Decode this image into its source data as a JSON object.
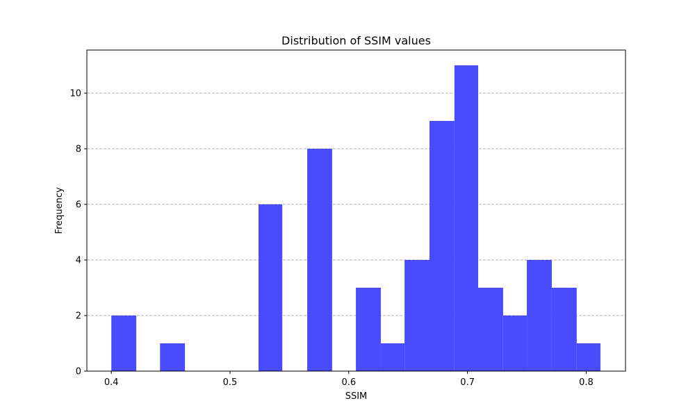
{
  "chart_data": {
    "type": "bar",
    "title": "Distribution of SSIM values",
    "xlabel": "SSIM",
    "ylabel": "Frequency",
    "bar_color": "#4a4aff",
    "grid": {
      "axis": "y",
      "style": "dashed",
      "color": "#b0b0b0"
    },
    "xlim": [
      0.3794,
      0.8331
    ],
    "ylim": [
      0,
      11.55
    ],
    "x_ticks": [
      0.4,
      0.5,
      0.6,
      0.7,
      0.8
    ],
    "x_tick_labels": [
      "0.4",
      "0.5",
      "0.6",
      "0.7",
      "0.8"
    ],
    "y_ticks": [
      0,
      2,
      4,
      6,
      8,
      10
    ],
    "y_tick_labels": [
      "0",
      "2",
      "4",
      "6",
      "8",
      "10"
    ],
    "bins": [
      {
        "x0": 0.4,
        "x1": 0.421,
        "count": 2
      },
      {
        "x0": 0.421,
        "x1": 0.441,
        "count": 0
      },
      {
        "x0": 0.441,
        "x1": 0.462,
        "count": 1
      },
      {
        "x0": 0.462,
        "x1": 0.483,
        "count": 0
      },
      {
        "x0": 0.483,
        "x1": 0.503,
        "count": 0
      },
      {
        "x0": 0.503,
        "x1": 0.524,
        "count": 0
      },
      {
        "x0": 0.524,
        "x1": 0.544,
        "count": 6
      },
      {
        "x0": 0.544,
        "x1": 0.565,
        "count": 0
      },
      {
        "x0": 0.565,
        "x1": 0.586,
        "count": 8
      },
      {
        "x0": 0.586,
        "x1": 0.606,
        "count": 0
      },
      {
        "x0": 0.606,
        "x1": 0.627,
        "count": 3
      },
      {
        "x0": 0.627,
        "x1": 0.647,
        "count": 1
      },
      {
        "x0": 0.647,
        "x1": 0.668,
        "count": 4
      },
      {
        "x0": 0.668,
        "x1": 0.689,
        "count": 9
      },
      {
        "x0": 0.689,
        "x1": 0.709,
        "count": 11
      },
      {
        "x0": 0.709,
        "x1": 0.73,
        "count": 3
      },
      {
        "x0": 0.73,
        "x1": 0.75,
        "count": 2
      },
      {
        "x0": 0.75,
        "x1": 0.771,
        "count": 4
      },
      {
        "x0": 0.771,
        "x1": 0.792,
        "count": 3
      },
      {
        "x0": 0.792,
        "x1": 0.812,
        "count": 1
      }
    ]
  }
}
